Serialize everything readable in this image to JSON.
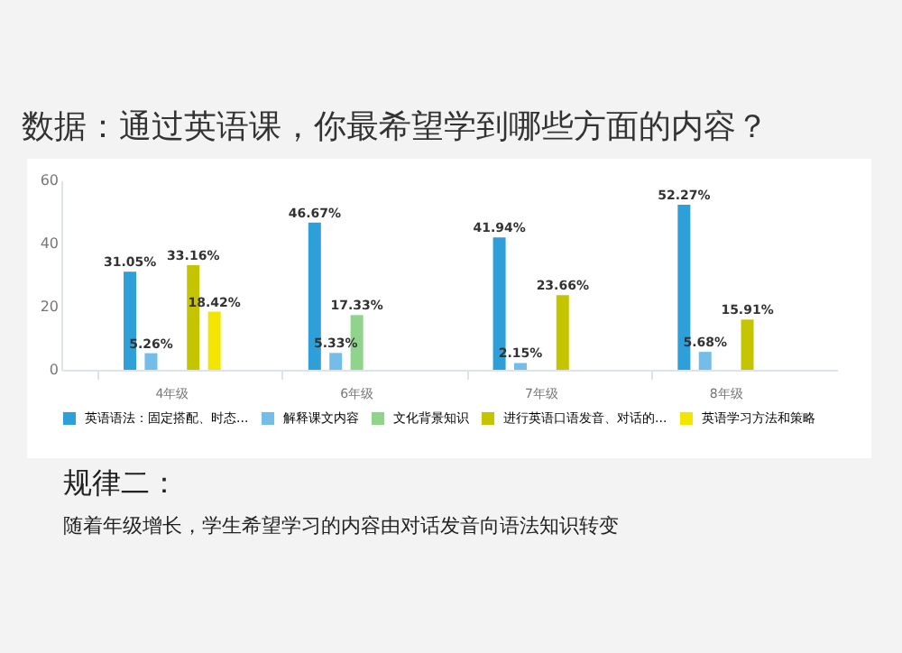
{
  "chart_data": {
    "type": "bar",
    "title": "数据：通过英语课，你最希望学到哪些方面的内容？",
    "categories": [
      "4年级",
      "6年级",
      "7年级",
      "8年级"
    ],
    "series": [
      {
        "name": "英语语法：固定搭配、时态...",
        "color": "#2e9fd8",
        "values": [
          31.05,
          46.67,
          41.94,
          52.27
        ],
        "value_labels": [
          "31.05%",
          "46.67%",
          "41.94%",
          "52.27%"
        ]
      },
      {
        "name": "解释课文内容",
        "color": "#74bde9",
        "values": [
          5.26,
          5.33,
          2.15,
          5.68
        ],
        "value_labels": [
          "5.26%",
          "5.33%",
          "2.15%",
          "5.68%"
        ]
      },
      {
        "name": "文化背景知识",
        "color": "#8fd48a",
        "values": [
          null,
          17.33,
          null,
          null
        ],
        "value_labels": [
          null,
          "17.33%",
          null,
          null
        ]
      },
      {
        "name": "进行英语口语发音、对话的...",
        "color": "#c4c400",
        "values": [
          33.16,
          null,
          23.66,
          15.91
        ],
        "value_labels": [
          "33.16%",
          null,
          "23.66%",
          "15.91%"
        ]
      },
      {
        "name": "英语学习方法和策略",
        "color": "#f2e600",
        "values": [
          18.42,
          null,
          null,
          null
        ],
        "value_labels": [
          "18.42%",
          null,
          null,
          null
        ]
      }
    ],
    "ylim": [
      0,
      60
    ],
    "yticks": [
      0,
      20,
      40,
      60
    ],
    "grid": false,
    "legend": "bottom",
    "annotations": [
      "规律二：",
      "随着年级增长，学生希望学习的内容由对话发音向语法知识转变"
    ]
  }
}
